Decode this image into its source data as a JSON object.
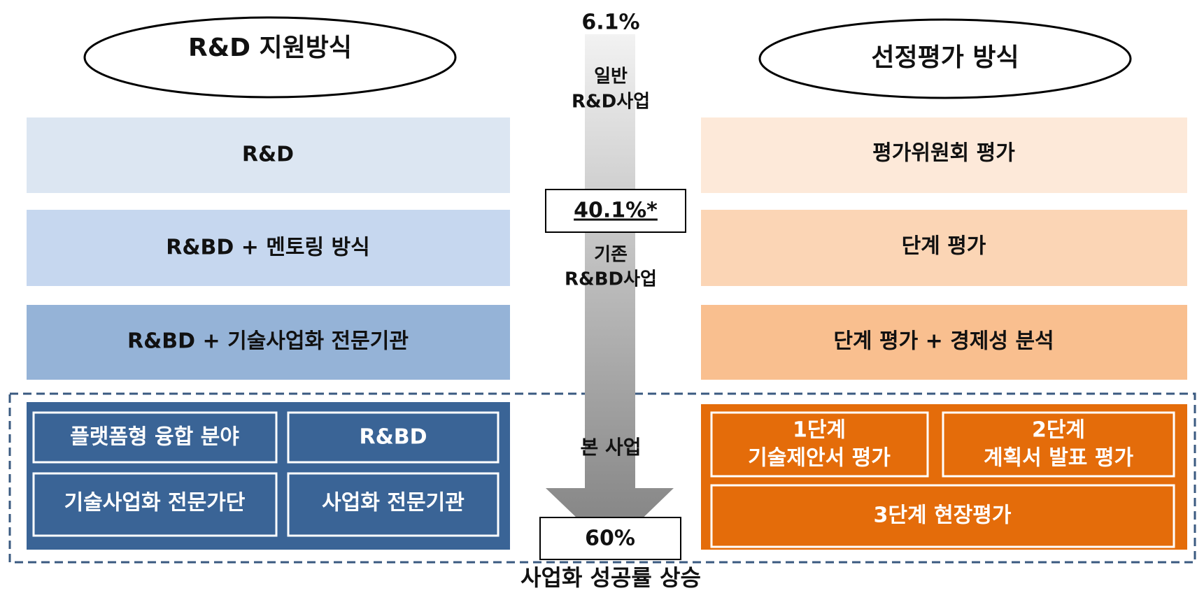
{
  "left": {
    "title": "R&D 지원방식",
    "rows": [
      "R&D",
      "R&BD + 멘토링 방식",
      "R&BD + 기술사업화 전문기관"
    ],
    "panel": [
      "플랫폼형 융합 분야",
      "R&BD",
      "기술사업화 전문가단",
      "사업화 전문기관"
    ]
  },
  "right": {
    "title": "선정평가 방식",
    "rows": [
      "평가위원회 평가",
      "단계 평가",
      "단계 평가 + 경제성 분석"
    ],
    "panel": [
      [
        "1단계",
        "기술제안서 평가"
      ],
      [
        "2단계",
        "계획서 발표 평가"
      ],
      [
        "3단계 현장평가"
      ]
    ]
  },
  "arrow": {
    "top_rate": "6.1%",
    "general": [
      "일반",
      "R&D사업"
    ],
    "mid_rate": "40.1%*",
    "existing": [
      "기존",
      "R&BD사업"
    ],
    "main": "본 사업",
    "bottom_rate": "60%",
    "caption": "사업화 성공률 상승"
  }
}
